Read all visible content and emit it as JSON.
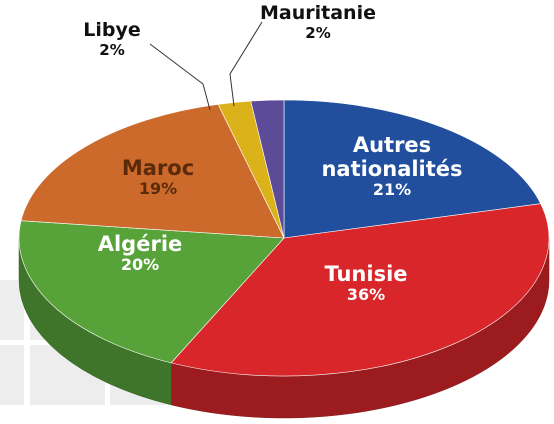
{
  "chart_data": {
    "type": "pie",
    "categories": [
      "Autres nationalités",
      "Tunisie",
      "Algérie",
      "Maroc",
      "Libye",
      "Mauritanie"
    ],
    "values": [
      21,
      36,
      20,
      19,
      2,
      2
    ],
    "value_labels": [
      "21%",
      "36%",
      "20%",
      "19%",
      "2%",
      "2%"
    ],
    "colors": [
      "#214f9e",
      "#d8262a",
      "#57a33a",
      "#cc6a2c",
      "#dcb21a",
      "#5c4b96"
    ]
  }
}
